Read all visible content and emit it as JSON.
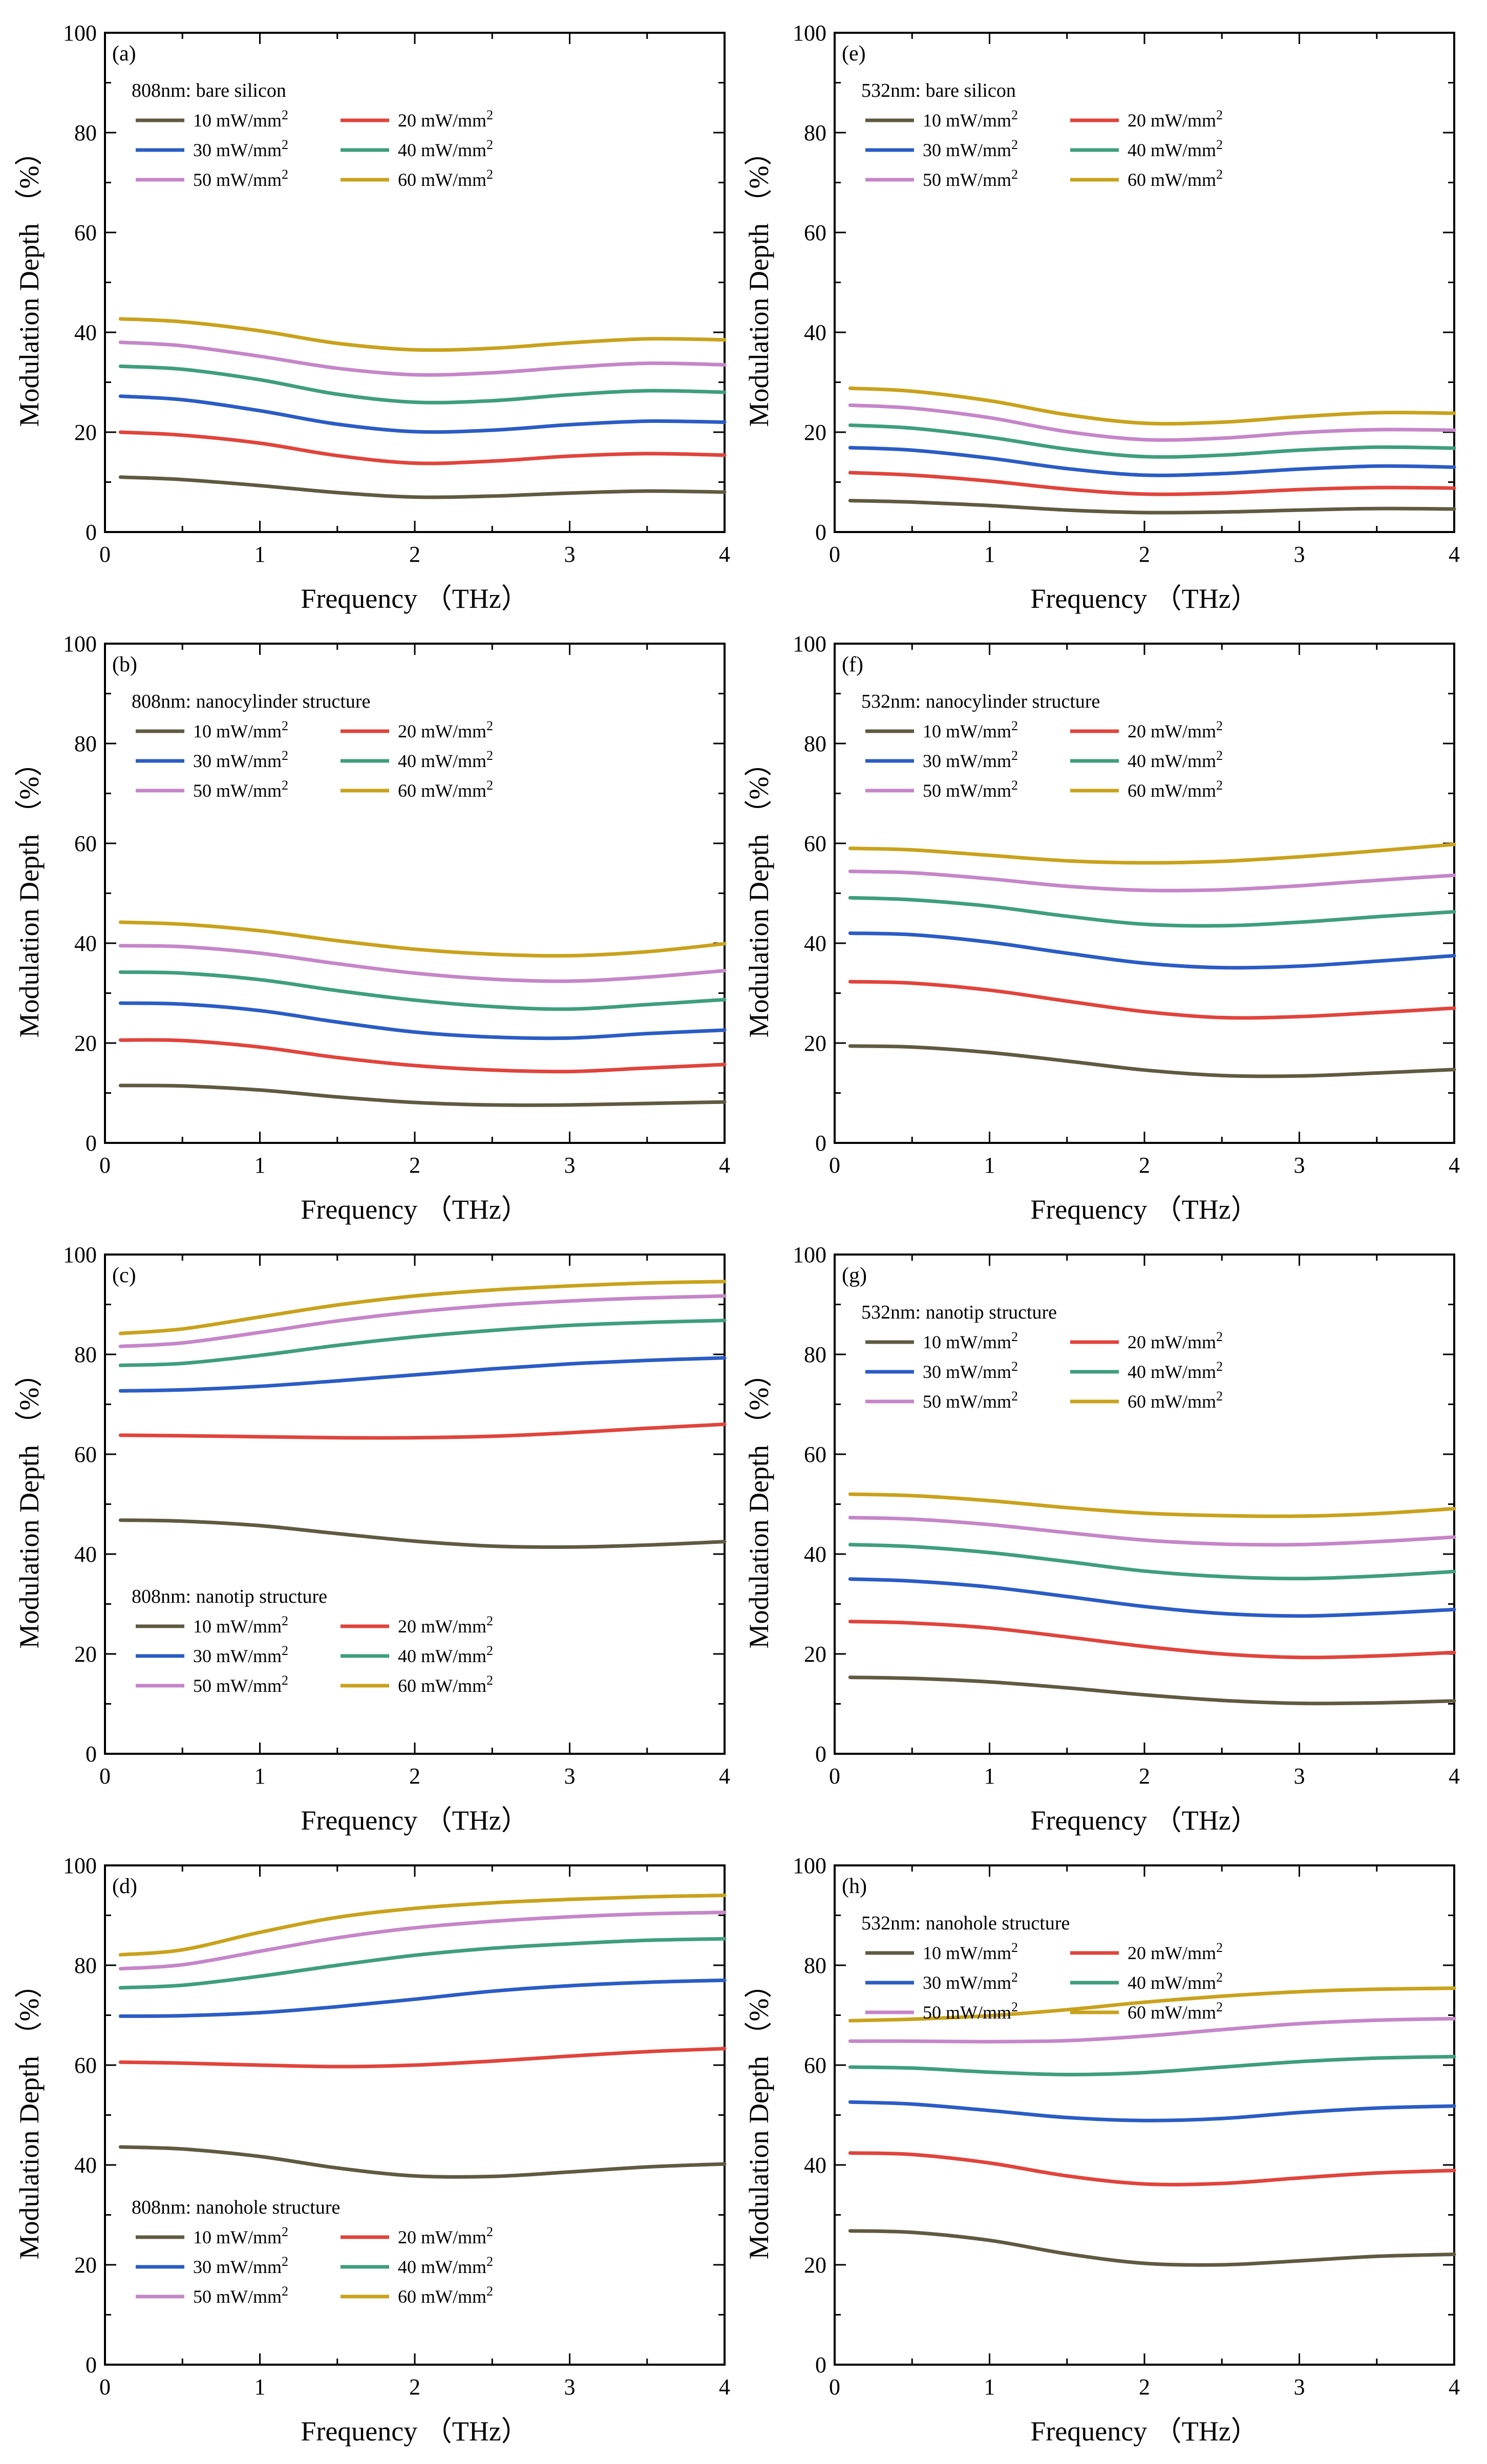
{
  "series_names": [
    "10 mW/mm2",
    "20 mW/mm2",
    "30 mW/mm2",
    "40 mW/mm2",
    "50 mW/mm2",
    "60 mW/mm2"
  ],
  "series_labels": [
    "10 mW/mm",
    "20 mW/mm",
    "30 mW/mm",
    "40 mW/mm",
    "50 mW/mm",
    "60 mW/mm"
  ],
  "unit_superscript": "2",
  "series_colors": [
    "#5f5a40",
    "#e0443c",
    "#2a5cc4",
    "#3e9e7e",
    "#c586c8",
    "#c9a21c"
  ],
  "chart_data": [
    {
      "type": "line",
      "panel": "(a)",
      "title": "808nm: bare silicon",
      "legend_position": "top",
      "xlabel": "Frequency （THz）",
      "ylabel": "Modulation Depth （%）",
      "xlim": [
        0,
        4
      ],
      "ylim": [
        0,
        100
      ],
      "xticks": [
        "0",
        "1",
        "2",
        "3",
        "4"
      ],
      "yticks": [
        "0",
        "20",
        "40",
        "60",
        "80",
        "100"
      ],
      "x": [
        0.1,
        0.5,
        1,
        1.5,
        2,
        2.5,
        3,
        3.5,
        4
      ],
      "series": [
        {
          "name": "10 mW/mm2",
          "values": [
            11,
            10.5,
            9.3,
            7.9,
            7,
            7.2,
            7.8,
            8.2,
            8
          ]
        },
        {
          "name": "20 mW/mm2",
          "values": [
            20,
            19.4,
            17.8,
            15.3,
            13.8,
            14.2,
            15.2,
            15.7,
            15.4
          ]
        },
        {
          "name": "30 mW/mm2",
          "values": [
            27.2,
            26.5,
            24.3,
            21.6,
            20.1,
            20.4,
            21.5,
            22.2,
            22
          ]
        },
        {
          "name": "40 mW/mm2",
          "values": [
            33.2,
            32.6,
            30.5,
            27.6,
            26,
            26.3,
            27.5,
            28.3,
            28
          ]
        },
        {
          "name": "50 mW/mm2",
          "values": [
            38,
            37.3,
            35.2,
            32.8,
            31.5,
            31.9,
            33,
            33.8,
            33.5
          ]
        },
        {
          "name": "60 mW/mm2",
          "values": [
            42.7,
            42.1,
            40.3,
            37.8,
            36.5,
            36.8,
            37.9,
            38.7,
            38.5
          ]
        }
      ]
    },
    {
      "type": "line",
      "panel": "(b)",
      "title": "808nm: nanocylinder structure",
      "legend_position": "top",
      "xlabel": "Frequency （THz）",
      "ylabel": "Modulation Depth （%）",
      "xlim": [
        0,
        4
      ],
      "ylim": [
        0,
        100
      ],
      "xticks": [
        "0",
        "1",
        "2",
        "3",
        "4"
      ],
      "yticks": [
        "0",
        "20",
        "40",
        "60",
        "80",
        "100"
      ],
      "x": [
        0.1,
        0.5,
        1,
        1.5,
        2,
        2.5,
        3,
        3.5,
        4
      ],
      "series": [
        {
          "name": "10 mW/mm2",
          "values": [
            11.5,
            11.4,
            10.6,
            9.2,
            8.1,
            7.6,
            7.6,
            7.9,
            8.2
          ]
        },
        {
          "name": "20 mW/mm2",
          "values": [
            20.6,
            20.5,
            19.2,
            17.1,
            15.5,
            14.6,
            14.3,
            15,
            15.7
          ]
        },
        {
          "name": "30 mW/mm2",
          "values": [
            28,
            27.8,
            26.5,
            24.2,
            22.2,
            21.2,
            21,
            21.9,
            22.6
          ]
        },
        {
          "name": "40 mW/mm2",
          "values": [
            34.2,
            34,
            32.7,
            30.5,
            28.6,
            27.3,
            26.8,
            27.7,
            28.7
          ]
        },
        {
          "name": "50 mW/mm2",
          "values": [
            39.5,
            39.3,
            38,
            35.9,
            34,
            32.8,
            32.4,
            33.2,
            34.5
          ]
        },
        {
          "name": "60 mW/mm2",
          "values": [
            44.2,
            43.8,
            42.5,
            40.5,
            38.8,
            37.8,
            37.5,
            38.3,
            39.9
          ]
        }
      ]
    },
    {
      "type": "line",
      "panel": "(c)",
      "title": "808nm: nanotip structure",
      "legend_position": "bottom",
      "xlabel": "Frequency （THz）",
      "ylabel": "Modulation Depth （%）",
      "xlim": [
        0,
        4
      ],
      "ylim": [
        0,
        100
      ],
      "xticks": [
        "0",
        "1",
        "2",
        "3",
        "4"
      ],
      "yticks": [
        "0",
        "20",
        "40",
        "60",
        "80",
        "100"
      ],
      "x": [
        0.1,
        0.5,
        1,
        1.5,
        2,
        2.5,
        3,
        3.5,
        4
      ],
      "series": [
        {
          "name": "10 mW/mm2",
          "values": [
            46.8,
            46.6,
            45.7,
            44.1,
            42.6,
            41.6,
            41.4,
            41.8,
            42.5
          ]
        },
        {
          "name": "20 mW/mm2",
          "values": [
            63.8,
            63.7,
            63.5,
            63.3,
            63.3,
            63.6,
            64.3,
            65.2,
            66
          ]
        },
        {
          "name": "30 mW/mm2",
          "values": [
            72.7,
            72.9,
            73.6,
            74.7,
            75.9,
            77.1,
            78.1,
            78.8,
            79.3
          ]
        },
        {
          "name": "40 mW/mm2",
          "values": [
            77.8,
            78.2,
            79.8,
            81.8,
            83.5,
            84.8,
            85.8,
            86.4,
            86.8
          ]
        },
        {
          "name": "50 mW/mm2",
          "values": [
            81.6,
            82.3,
            84.4,
            86.7,
            88.5,
            89.8,
            90.7,
            91.3,
            91.7
          ]
        },
        {
          "name": "60 mW/mm2",
          "values": [
            84.2,
            85.1,
            87.5,
            89.9,
            91.7,
            92.9,
            93.7,
            94.3,
            94.6
          ]
        }
      ]
    },
    {
      "type": "line",
      "panel": "(d)",
      "title": "808nm: nanohole structure",
      "legend_position": "bottom",
      "xlabel": "Frequency （THz）",
      "ylabel": "Modulation Depth （%）",
      "xlim": [
        0,
        4
      ],
      "ylim": [
        0,
        100
      ],
      "xticks": [
        "0",
        "1",
        "2",
        "3",
        "4"
      ],
      "yticks": [
        "0",
        "20",
        "40",
        "60",
        "80",
        "100"
      ],
      "x": [
        0.1,
        0.5,
        1,
        1.5,
        2,
        2.5,
        3,
        3.5,
        4
      ],
      "series": [
        {
          "name": "10 mW/mm2",
          "values": [
            43.6,
            43.2,
            41.7,
            39.4,
            37.8,
            37.7,
            38.6,
            39.6,
            40.2
          ]
        },
        {
          "name": "20 mW/mm2",
          "values": [
            60.6,
            60.4,
            60,
            59.7,
            60,
            60.8,
            61.8,
            62.7,
            63.3
          ]
        },
        {
          "name": "30 mW/mm2",
          "values": [
            69.8,
            69.9,
            70.5,
            71.7,
            73.2,
            74.8,
            75.9,
            76.6,
            77
          ]
        },
        {
          "name": "40 mW/mm2",
          "values": [
            75.5,
            76,
            77.8,
            80,
            82,
            83.4,
            84.3,
            85,
            85.3
          ]
        },
        {
          "name": "50 mW/mm2",
          "values": [
            79.3,
            80.1,
            82.8,
            85.5,
            87.5,
            88.8,
            89.7,
            90.3,
            90.6
          ]
        },
        {
          "name": "60 mW/mm2",
          "values": [
            82.1,
            83.1,
            86.6,
            89.6,
            91.4,
            92.5,
            93.2,
            93.7,
            94
          ]
        }
      ]
    },
    {
      "type": "line",
      "panel": "(e)",
      "title": "532nm: bare silicon",
      "legend_position": "top",
      "xlabel": "Frequency （THz）",
      "ylabel": "Modulation Depth （%）",
      "xlim": [
        0,
        4
      ],
      "ylim": [
        0,
        100
      ],
      "xticks": [
        "0",
        "1",
        "2",
        "3",
        "4"
      ],
      "yticks": [
        "0",
        "20",
        "40",
        "60",
        "80",
        "100"
      ],
      "x": [
        0.1,
        0.5,
        1,
        1.5,
        2,
        2.5,
        3,
        3.5,
        4
      ],
      "series": [
        {
          "name": "10 mW/mm2",
          "values": [
            6.3,
            6,
            5.3,
            4.4,
            3.9,
            4,
            4.4,
            4.7,
            4.6
          ]
        },
        {
          "name": "20 mW/mm2",
          "values": [
            11.9,
            11.4,
            10.2,
            8.6,
            7.6,
            7.8,
            8.5,
            8.9,
            8.8
          ]
        },
        {
          "name": "30 mW/mm2",
          "values": [
            16.9,
            16.4,
            14.8,
            12.7,
            11.4,
            11.7,
            12.6,
            13.2,
            13
          ]
        },
        {
          "name": "40 mW/mm2",
          "values": [
            21.4,
            20.8,
            19,
            16.6,
            15.1,
            15.4,
            16.4,
            17,
            16.8
          ]
        },
        {
          "name": "50 mW/mm2",
          "values": [
            25.4,
            24.8,
            22.9,
            20.1,
            18.5,
            18.8,
            19.9,
            20.5,
            20.4
          ]
        },
        {
          "name": "60 mW/mm2",
          "values": [
            28.8,
            28.2,
            26.3,
            23.5,
            21.8,
            22,
            23.1,
            23.9,
            23.8
          ]
        }
      ]
    },
    {
      "type": "line",
      "panel": "(f)",
      "title": "532nm: nanocylinder structure",
      "legend_position": "top",
      "xlabel": "Frequency （THz）",
      "ylabel": "Modulation Depth （%）",
      "xlim": [
        0,
        4
      ],
      "ylim": [
        0,
        100
      ],
      "xticks": [
        "0",
        "1",
        "2",
        "3",
        "4"
      ],
      "yticks": [
        "0",
        "20",
        "40",
        "60",
        "80",
        "100"
      ],
      "x": [
        0.1,
        0.5,
        1,
        1.5,
        2,
        2.5,
        3,
        3.5,
        4
      ],
      "series": [
        {
          "name": "10 mW/mm2",
          "values": [
            19.4,
            19.2,
            18.1,
            16.4,
            14.6,
            13.5,
            13.4,
            14,
            14.7
          ]
        },
        {
          "name": "20 mW/mm2",
          "values": [
            32.3,
            32,
            30.6,
            28.4,
            26.3,
            25.1,
            25.3,
            26.1,
            27
          ]
        },
        {
          "name": "30 mW/mm2",
          "values": [
            42,
            41.7,
            40.2,
            38,
            36,
            35.1,
            35.4,
            36.4,
            37.5
          ]
        },
        {
          "name": "40 mW/mm2",
          "values": [
            49.1,
            48.7,
            47.4,
            45.4,
            43.8,
            43.5,
            44.2,
            45.3,
            46.3
          ]
        },
        {
          "name": "50 mW/mm2",
          "values": [
            54.4,
            54.1,
            52.9,
            51.4,
            50.6,
            50.7,
            51.5,
            52.6,
            53.6
          ]
        },
        {
          "name": "60 mW/mm2",
          "values": [
            59,
            58.7,
            57.6,
            56.5,
            56.1,
            56.4,
            57.3,
            58.5,
            59.8
          ]
        }
      ]
    },
    {
      "type": "line",
      "panel": "(g)",
      "title": "532nm: nanotip structure",
      "legend_position": "top",
      "xlabel": "Frequency （THz）",
      "ylabel": "Modulation Depth （%）",
      "xlim": [
        0,
        4
      ],
      "ylim": [
        0,
        100
      ],
      "xticks": [
        "0",
        "1",
        "2",
        "3",
        "4"
      ],
      "yticks": [
        "0",
        "20",
        "40",
        "60",
        "80",
        "100"
      ],
      "x": [
        0.1,
        0.5,
        1,
        1.5,
        2,
        2.5,
        3,
        3.5,
        4
      ],
      "series": [
        {
          "name": "10 mW/mm2",
          "values": [
            15.3,
            15.1,
            14.4,
            13.2,
            11.8,
            10.7,
            10.1,
            10.2,
            10.6
          ]
        },
        {
          "name": "20 mW/mm2",
          "values": [
            26.5,
            26.2,
            25.2,
            23.4,
            21.5,
            20,
            19.3,
            19.6,
            20.3
          ]
        },
        {
          "name": "30 mW/mm2",
          "values": [
            35,
            34.6,
            33.4,
            31.5,
            29.5,
            28.1,
            27.6,
            28.1,
            28.9
          ]
        },
        {
          "name": "40 mW/mm2",
          "values": [
            41.9,
            41.5,
            40.3,
            38.5,
            36.6,
            35.5,
            35.1,
            35.6,
            36.5
          ]
        },
        {
          "name": "50 mW/mm2",
          "values": [
            47.3,
            47,
            45.9,
            44.3,
            42.8,
            42,
            41.9,
            42.5,
            43.4
          ]
        },
        {
          "name": "60 mW/mm2",
          "values": [
            52,
            51.7,
            50.7,
            49.3,
            48.2,
            47.7,
            47.6,
            48.1,
            49.1
          ]
        }
      ]
    },
    {
      "type": "line",
      "panel": "(h)",
      "title": "532nm: nanohole structure",
      "legend_position": "top",
      "xlabel": "Frequency （THz）",
      "ylabel": "Modulation Depth （%）",
      "xlim": [
        0,
        4
      ],
      "ylim": [
        0,
        100
      ],
      "xticks": [
        "0",
        "1",
        "2",
        "3",
        "4"
      ],
      "yticks": [
        "0",
        "20",
        "40",
        "60",
        "80",
        "100"
      ],
      "x": [
        0.1,
        0.5,
        1,
        1.5,
        2,
        2.5,
        3,
        3.5,
        4
      ],
      "series": [
        {
          "name": "10 mW/mm2",
          "values": [
            26.8,
            26.5,
            24.9,
            22.2,
            20.3,
            20,
            20.8,
            21.7,
            22.1
          ]
        },
        {
          "name": "20 mW/mm2",
          "values": [
            42.4,
            42.1,
            40.4,
            37.8,
            36.2,
            36.3,
            37.4,
            38.4,
            38.9
          ]
        },
        {
          "name": "30 mW/mm2",
          "values": [
            52.6,
            52.2,
            50.9,
            49.5,
            48.9,
            49.3,
            50.5,
            51.4,
            51.8
          ]
        },
        {
          "name": "40 mW/mm2",
          "values": [
            59.6,
            59.4,
            58.6,
            58.1,
            58.5,
            59.6,
            60.7,
            61.4,
            61.7
          ]
        },
        {
          "name": "50 mW/mm2",
          "values": [
            64.8,
            64.8,
            64.7,
            64.9,
            65.8,
            67.1,
            68.3,
            69,
            69.3
          ]
        },
        {
          "name": "60 mW/mm2",
          "values": [
            68.9,
            69.2,
            69.9,
            71.1,
            72.6,
            73.8,
            74.7,
            75.2,
            75.4
          ]
        }
      ]
    }
  ]
}
